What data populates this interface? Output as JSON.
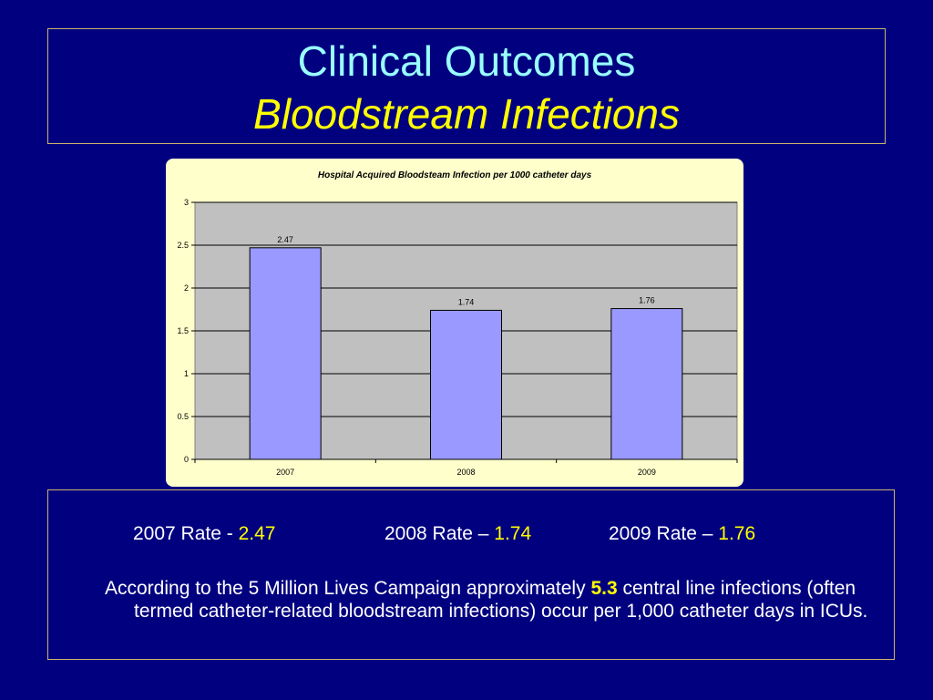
{
  "slide": {
    "title": "Clinical Outcomes",
    "subtitle": "Bloodstream Infections"
  },
  "colors": {
    "background": "#010180",
    "title": "#99ffff",
    "subtitle": "#ffff00",
    "accent": "#ffff00",
    "bar": "#9999ff",
    "plot_area": "#c0c0c0",
    "chart_background": "#ffffcc"
  },
  "chart_data": {
    "type": "bar",
    "title": "Hospital Acquired Bloodsteam Infection per 1000 catheter days",
    "categories": [
      "2007",
      "2008",
      "2009"
    ],
    "values": [
      2.47,
      1.74,
      1.76
    ],
    "data_labels": [
      "2.47",
      "1.74",
      "1.76"
    ],
    "yticks": [
      "0",
      "0.5",
      "1",
      "1.5",
      "2",
      "2.5",
      "3"
    ],
    "ylim": [
      0,
      3
    ],
    "xlabel": "",
    "ylabel": "",
    "grid": true,
    "legend": "none"
  },
  "rates": [
    {
      "label": "2007  Rate - ",
      "value": "2.47"
    },
    {
      "label": "2008 Rate – ",
      "value": "1.74"
    },
    {
      "label": "2009 Rate – ",
      "value": "1.76"
    }
  ],
  "note": {
    "before": "According to the 5 Million Lives Campaign approximately ",
    "highlight": "5.3",
    "after": " central line infections (often termed catheter-related bloodstream infections) occur per 1,000 catheter days in ICUs."
  }
}
